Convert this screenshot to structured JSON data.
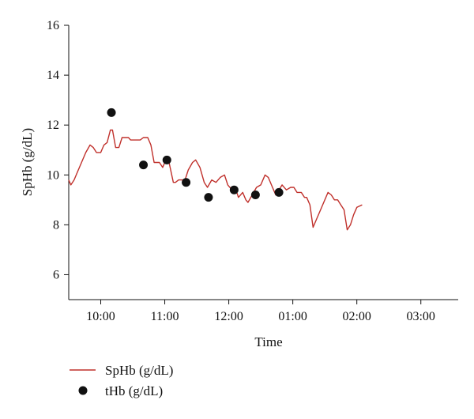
{
  "chart_data": {
    "type": "line",
    "title": "",
    "xlabel": "Time",
    "ylabel": "SpHb (g/dL)",
    "ylim": [
      5,
      16
    ],
    "y_ticks": [
      6,
      8,
      10,
      12,
      14,
      16
    ],
    "y_tick_labels": [
      "6",
      "8",
      "10",
      "12",
      "14",
      "16"
    ],
    "xlim": [
      "09:30",
      "03:35"
    ],
    "x_ticks": [
      "10:00",
      "11:00",
      "12:00",
      "01:00",
      "02:00",
      "03:00"
    ],
    "x_tick_labels": [
      "10:00",
      "11:00",
      "12:00",
      "01:00",
      "02:00",
      "03:00"
    ],
    "grid": false,
    "legend_position": "bottom-left",
    "series": [
      {
        "name": "SpHb (g/dL)",
        "kind": "line",
        "color": "#c0302b",
        "points": [
          [
            "09:30",
            9.8
          ],
          [
            "09:32",
            9.6
          ],
          [
            "09:35",
            9.8
          ],
          [
            "09:38",
            10.1
          ],
          [
            "09:42",
            10.5
          ],
          [
            "09:46",
            10.9
          ],
          [
            "09:50",
            11.2
          ],
          [
            "09:53",
            11.1
          ],
          [
            "09:56",
            10.9
          ],
          [
            "10:00",
            10.9
          ],
          [
            "10:03",
            11.2
          ],
          [
            "10:06",
            11.3
          ],
          [
            "10:09",
            11.8
          ],
          [
            "10:11",
            11.8
          ],
          [
            "10:14",
            11.1
          ],
          [
            "10:17",
            11.1
          ],
          [
            "10:20",
            11.5
          ],
          [
            "10:26",
            11.5
          ],
          [
            "10:28",
            11.4
          ],
          [
            "10:37",
            11.4
          ],
          [
            "10:40",
            11.5
          ],
          [
            "10:44",
            11.5
          ],
          [
            "10:47",
            11.2
          ],
          [
            "10:50",
            10.5
          ],
          [
            "10:55",
            10.5
          ],
          [
            "10:58",
            10.3
          ],
          [
            "11:01",
            10.6
          ],
          [
            "11:04",
            10.5
          ],
          [
            "11:08",
            9.7
          ],
          [
            "11:10",
            9.7
          ],
          [
            "11:13",
            9.8
          ],
          [
            "11:19",
            9.8
          ],
          [
            "11:22",
            10.2
          ],
          [
            "11:26",
            10.5
          ],
          [
            "11:29",
            10.6
          ],
          [
            "11:33",
            10.3
          ],
          [
            "11:37",
            9.7
          ],
          [
            "11:40",
            9.5
          ],
          [
            "11:44",
            9.8
          ],
          [
            "11:48",
            9.7
          ],
          [
            "11:52",
            9.9
          ],
          [
            "11:56",
            10.0
          ],
          [
            "11:59",
            9.6
          ],
          [
            "12:03",
            9.4
          ],
          [
            "12:06",
            9.5
          ],
          [
            "12:09",
            9.1
          ],
          [
            "12:13",
            9.3
          ],
          [
            "12:16",
            9.0
          ],
          [
            "12:18",
            8.9
          ],
          [
            "12:22",
            9.2
          ],
          [
            "12:26",
            9.5
          ],
          [
            "12:30",
            9.6
          ],
          [
            "12:34",
            10.0
          ],
          [
            "12:37",
            9.9
          ],
          [
            "12:40",
            9.6
          ],
          [
            "12:44",
            9.2
          ],
          [
            "12:47",
            9.4
          ],
          [
            "12:50",
            9.6
          ],
          [
            "12:54",
            9.4
          ],
          [
            "12:58",
            9.5
          ],
          [
            "13:01",
            9.5
          ],
          [
            "13:04",
            9.3
          ],
          [
            "13:08",
            9.3
          ],
          [
            "13:11",
            9.1
          ],
          [
            "13:13",
            9.1
          ],
          [
            "13:16",
            8.8
          ],
          [
            "13:19",
            7.9
          ],
          [
            "13:23",
            8.3
          ],
          [
            "13:26",
            8.6
          ],
          [
            "13:29",
            8.9
          ],
          [
            "13:33",
            9.3
          ],
          [
            "13:36",
            9.2
          ],
          [
            "13:39",
            9.0
          ],
          [
            "13:42",
            9.0
          ],
          [
            "13:45",
            8.8
          ],
          [
            "13:48",
            8.6
          ],
          [
            "13:51",
            7.8
          ],
          [
            "13:54",
            8.0
          ],
          [
            "13:57",
            8.4
          ],
          [
            "14:00",
            8.7
          ],
          [
            "14:05",
            8.8
          ]
        ]
      },
      {
        "name": "tHb (g/dL)",
        "kind": "scatter",
        "color": "#111111",
        "points": [
          [
            "10:10",
            12.5
          ],
          [
            "10:40",
            10.4
          ],
          [
            "11:02",
            10.6
          ],
          [
            "11:20",
            9.7
          ],
          [
            "11:41",
            9.1
          ],
          [
            "12:05",
            9.4
          ],
          [
            "12:25",
            9.2
          ],
          [
            "12:47",
            9.3
          ]
        ]
      }
    ]
  }
}
